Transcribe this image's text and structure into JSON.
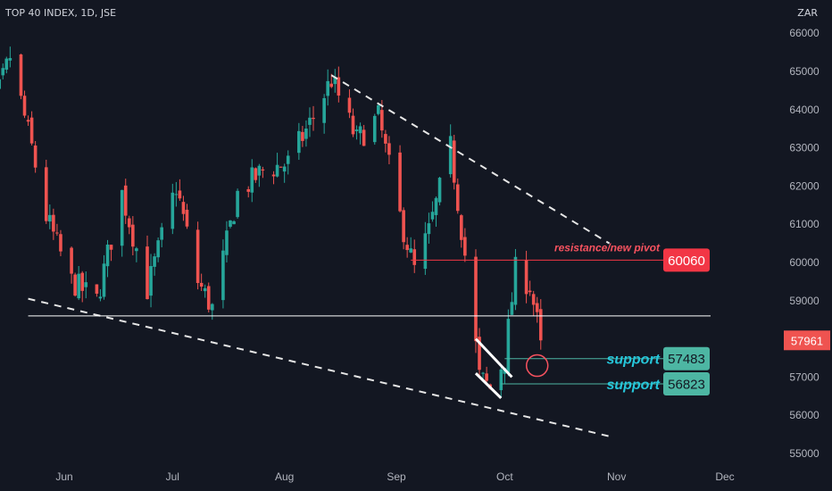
{
  "header": {
    "symbol_title": "TOP 40 INDEX, 1D, JSE",
    "currency": "ZAR"
  },
  "colors": {
    "background": "#131722",
    "up": "#26a69a",
    "down": "#ef5350",
    "text": "#b2b5be",
    "support": "#26c6da",
    "support_box": "#4db6a3",
    "resistance_box": "#f23645"
  },
  "chart_data": {
    "type": "candlestick",
    "title": "TOP 40 INDEX, 1D, JSE",
    "ylim": [
      55000,
      66200
    ],
    "yticks": [
      "66000",
      "65000",
      "64000",
      "63000",
      "62000",
      "61000",
      "60000",
      "59000",
      "58000",
      "57000",
      "56000",
      "55000"
    ],
    "xticks": [
      "Jun",
      "Jul",
      "Aug",
      "Sep",
      "Oct",
      "Nov",
      "Dec"
    ],
    "grid": false,
    "last_price": "57961",
    "levels": [
      {
        "label": "resistance/new pivot",
        "value": "60060"
      },
      {
        "label": "support",
        "value": "57483"
      },
      {
        "label": "support",
        "value": "56823"
      }
    ],
    "horizontal_line": 58600,
    "upper_trendline": [
      {
        "date": "Aug 14",
        "price": 64900
      },
      {
        "date": "Oct 30",
        "price": 60500
      }
    ],
    "lower_trendline": [
      {
        "date": "May 22",
        "price": 59050
      },
      {
        "date": "Oct 30",
        "price": 55450
      }
    ],
    "flag_lines": [
      [
        {
          "date": "Sep 23",
          "price": 58000
        },
        {
          "date": "Oct 3",
          "price": 57000
        }
      ],
      [
        {
          "date": "Sep 23",
          "price": 57100
        },
        {
          "date": "Sep 30",
          "price": 56450
        }
      ]
    ],
    "circle_marker": {
      "date": "Oct 10",
      "price": 57300
    },
    "anchors": [
      {
        "date": "May 4",
        "price": 61000
      },
      {
        "date": "May 13",
        "price": 64200
      },
      {
        "date": "May 17",
        "price": 65400
      },
      {
        "date": "May 23",
        "price": 63000
      },
      {
        "date": "May 27",
        "price": 61200
      },
      {
        "date": "Jun 3",
        "price": 59500
      },
      {
        "date": "Jun 10",
        "price": 59000
      },
      {
        "date": "Jun 17",
        "price": 61800
      },
      {
        "date": "Jun 24",
        "price": 59300
      },
      {
        "date": "Jul 2",
        "price": 62000
      },
      {
        "date": "Jul 8",
        "price": 59500
      },
      {
        "date": "Jul 12",
        "price": 58800
      },
      {
        "date": "Jul 19",
        "price": 61800
      },
      {
        "date": "Jul 26",
        "price": 62400
      },
      {
        "date": "Aug 2",
        "price": 62600
      },
      {
        "date": "Aug 9",
        "price": 63800
      },
      {
        "date": "Aug 14",
        "price": 64800
      },
      {
        "date": "Aug 21",
        "price": 63200
      },
      {
        "date": "Aug 27",
        "price": 63800
      },
      {
        "date": "Sep 2",
        "price": 61200
      },
      {
        "date": "Sep 6",
        "price": 59800
      },
      {
        "date": "Sep 10",
        "price": 60800
      },
      {
        "date": "Sep 16",
        "price": 63000
      },
      {
        "date": "Sep 20",
        "price": 60200
      },
      {
        "date": "Sep 24",
        "price": 57000
      },
      {
        "date": "Sep 27",
        "price": 56700
      },
      {
        "date": "Oct 1",
        "price": 57500
      },
      {
        "date": "Oct 4",
        "price": 59800
      },
      {
        "date": "Oct 8",
        "price": 59400
      },
      {
        "date": "Oct 11",
        "price": 57961
      }
    ]
  }
}
